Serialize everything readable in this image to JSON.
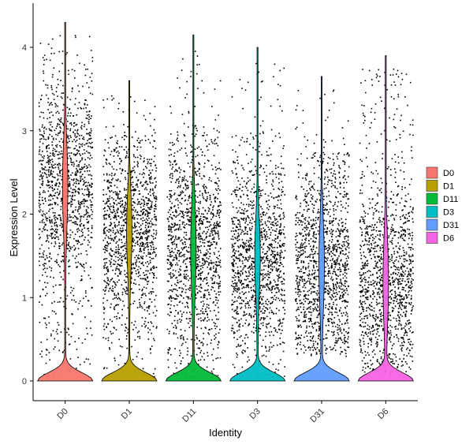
{
  "chart_data": {
    "type": "violin",
    "title": "",
    "xlabel": "Identity",
    "ylabel": "Expression Level",
    "categories": [
      "D0",
      "D1",
      "D11",
      "D3",
      "D31",
      "D6"
    ],
    "ylim": [
      -0.2,
      4.45
    ],
    "yticks": [
      0,
      1,
      2,
      3,
      4
    ],
    "legend": {
      "position": "right",
      "entries": [
        "D0",
        "D1",
        "D11",
        "D3",
        "D31",
        "D6"
      ]
    },
    "grid": false,
    "series": [
      {
        "name": "D0",
        "color": "#F8766D",
        "max": 4.3,
        "modes": [
          2.35,
          0.05
        ],
        "spread": 0.8,
        "jitter_range": [
          0.05,
          3.75
        ]
      },
      {
        "name": "D1",
        "color": "#B79F00",
        "max": 3.6,
        "modes": [
          1.8,
          0.05
        ],
        "spread": 0.7,
        "jitter_range": [
          0.05,
          2.95
        ]
      },
      {
        "name": "D11",
        "color": "#00BA38",
        "max": 4.15,
        "modes": [
          1.6,
          0.05
        ],
        "spread": 0.8,
        "jitter_range": [
          0.05,
          3.1
        ]
      },
      {
        "name": "D3",
        "color": "#00BFC4",
        "max": 4.0,
        "modes": [
          1.5,
          0.05
        ],
        "spread": 0.7,
        "jitter_range": [
          0.05,
          3.0
        ]
      },
      {
        "name": "D31",
        "color": "#619CFF",
        "max": 3.65,
        "modes": [
          1.4,
          0.05
        ],
        "spread": 0.8,
        "jitter_range": [
          0.3,
          2.75
        ]
      },
      {
        "name": "D6",
        "color": "#F564E3",
        "max": 3.9,
        "modes": [
          1.2,
          0.05
        ],
        "spread": 0.8,
        "jitter_range": [
          0.05,
          3.55
        ]
      }
    ]
  }
}
